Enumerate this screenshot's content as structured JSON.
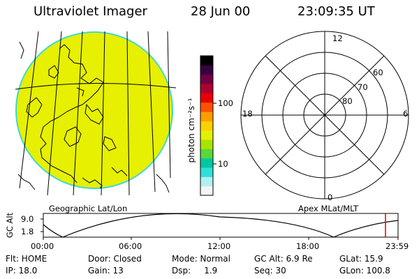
{
  "header": {
    "title": "Ultraviolet Imager",
    "date": "28 Jun 00",
    "time": "23:09:35 UT"
  },
  "colorbar": {
    "label": "photon cm⁻²s⁻¹",
    "ticks": [
      {
        "value": 100,
        "label": "100"
      },
      {
        "value": 10,
        "label": "10"
      }
    ],
    "colors": [
      "#f4f4f4",
      "#b0f0f0",
      "#30e0d8",
      "#00c8a0",
      "#58d838",
      "#a8e400",
      "#e4f000",
      "#ffd000",
      "#ff9c00",
      "#ff5000",
      "#e80000",
      "#b00030",
      "#700040",
      "#380040",
      "#000000"
    ]
  },
  "geo_panel": {
    "caption": "Geographic Lat/Lon",
    "fill_color": "#e6f000",
    "limb_color": "#40d8d0"
  },
  "polar_panel": {
    "caption": "Apex MLat/MLT",
    "mlt_labels": {
      "top": "12",
      "bottom": "0",
      "left": "18",
      "right": "6"
    },
    "mlat_labels": [
      "80",
      "70",
      "60"
    ]
  },
  "orbit_plot": {
    "ylabel": "GC Alt",
    "yticks": [
      "9.0",
      "1.8"
    ],
    "xticks": [
      "00:00",
      "06:00",
      "12:00",
      "18:00",
      "23:59"
    ],
    "marker_color": "#e00000"
  },
  "info": {
    "flt": "Flt: HOME",
    "door": "Door: Closed",
    "mode": "Mode: Normal",
    "gcalt": "GC Alt: 6.9 Re",
    "glat": "GLat: 15.9",
    "ip": "IP: 18.0",
    "gain": "Gain: 13",
    "dsp": "Dsp:     1.9",
    "seq": "Seq: 30",
    "glon": "GLon: 100.8"
  }
}
